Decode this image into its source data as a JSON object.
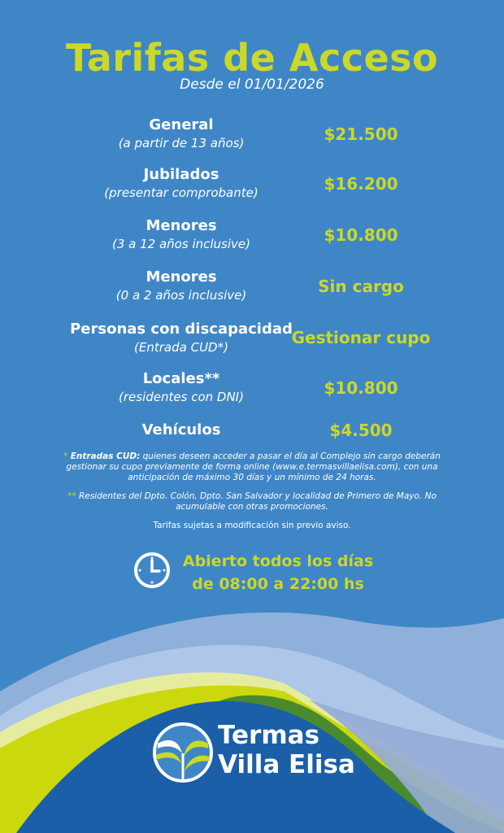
{
  "header": {
    "title": "Tarifas de Acceso",
    "subtitle": "Desde el 01/01/2026"
  },
  "rates": [
    {
      "name": "General",
      "detail": "(a partir de 13 años)",
      "price": "$21.500"
    },
    {
      "name": "Jubilados",
      "detail": "(presentar comprobante)",
      "price": "$16.200"
    },
    {
      "name": "Menores",
      "detail": "(3 a 12 años inclusive)",
      "price": "$10.800"
    },
    {
      "name": "Menores",
      "detail": "(0 a 2 años inclusive)",
      "price": "Sin cargo"
    },
    {
      "name": "Personas con discapacidad",
      "detail": "(Entrada CUD*)",
      "price": "Gestionar cupo"
    },
    {
      "name": "Locales**",
      "detail": "(residentes con DNI)",
      "price": "$10.800"
    },
    {
      "name": "Vehículos",
      "detail": "",
      "price": "$4.500"
    }
  ],
  "notes": {
    "cud_star": "*",
    "cud_label": "Entradas CUD:",
    "cud_text": "quienes deseen acceder a pasar el día al Complejo sin cargo deberán gestionar su cupo previamente de forma online (www.e.termasvillaelisa.com), con una anticipación de máximo 30 días y un mínimo de 24 horas.",
    "locales_star": "**",
    "locales_text": "Residentes del Dpto. Colón, Dpto. San Salvador y localidad de Primero de Mayo. No acumulable con otras promociones.",
    "disclaimer": "Tarifas sujetas a modificación sin previo aviso."
  },
  "hours": {
    "icon": "clock-icon",
    "line1": "Abierto todos los días",
    "line2": "de 08:00 a 22:00 hs"
  },
  "brand": {
    "line1": "Termas",
    "line2": "Villa Elisa"
  },
  "colors": {
    "background": "#3f86c7",
    "accent": "#cbd827",
    "dark_blue": "#1a5fa8",
    "green": "#4a8a2e"
  }
}
